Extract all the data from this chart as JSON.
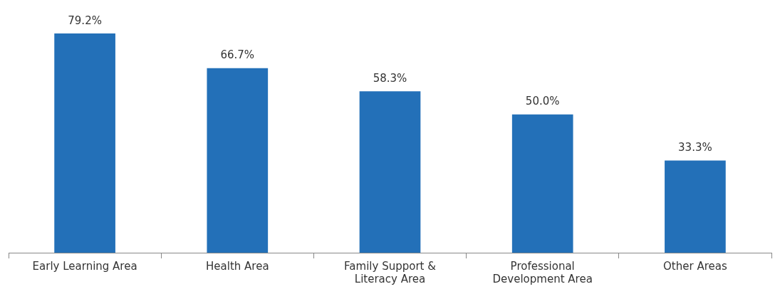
{
  "chart_data": {
    "type": "bar",
    "categories": [
      "Early Learning Area",
      "Health Area",
      "Family Support & Literacy Area",
      "Professional Development Area",
      "Other Areas"
    ],
    "values": [
      79.2,
      66.7,
      58.3,
      50.0,
      33.3
    ],
    "color": "#2370b8",
    "value_labels": [
      "79.2%",
      "66.7%",
      "58.3%",
      "50.0%",
      "33.3%"
    ],
    "grid": false,
    "legend": false
  }
}
